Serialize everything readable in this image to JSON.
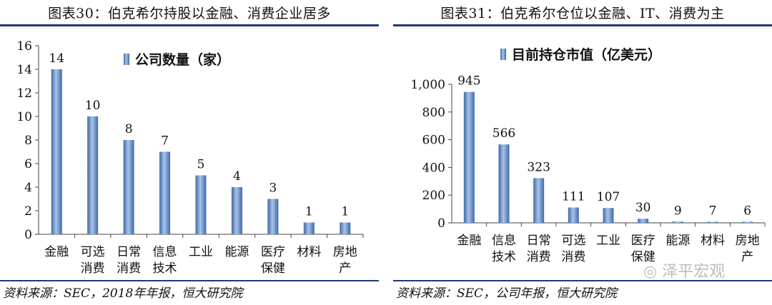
{
  "watermark": "泽平宏观",
  "watermark_icon": "wechat-icon",
  "bar_color": "#5b86c8",
  "bar_color_light": "#a9c3e8",
  "bar_color_dark": "#3e6aa8",
  "rule_color": "#1f3a73",
  "chart_data": [
    {
      "type": "bar",
      "figure_title": "图表30：伯克希尔持股以金融、消费企业居多",
      "legend": "公司数量（家）",
      "legend_position": "top",
      "source": "资料来源：SEC，2018年年报，恒大研究院",
      "categories": [
        [
          "金融"
        ],
        [
          "可选",
          "消费"
        ],
        [
          "日常",
          "消费"
        ],
        [
          "信息",
          "技术"
        ],
        [
          "工业"
        ],
        [
          "能源"
        ],
        [
          "医疗",
          "保健"
        ],
        [
          "材料"
        ],
        [
          "房地",
          "产"
        ]
      ],
      "values": [
        14,
        10,
        8,
        7,
        5,
        4,
        3,
        1,
        1
      ],
      "data_labels": [
        "14",
        "10",
        "8",
        "7",
        "5",
        "4",
        "3",
        "1",
        "1"
      ],
      "yticks": [
        "0",
        "2",
        "4",
        "6",
        "8",
        "10",
        "12",
        "14",
        "16"
      ],
      "ylim": [
        0,
        16
      ],
      "grid": false
    },
    {
      "type": "bar",
      "figure_title": "图表31：伯克希尔仓位以金融、IT、消费为主",
      "legend": "目前持仓市值（亿美元）",
      "legend_position": "top",
      "source": "资料来源：SEC，公司年报，恒大研究院",
      "categories": [
        [
          "金融"
        ],
        [
          "信息",
          "技术"
        ],
        [
          "日常",
          "消费"
        ],
        [
          "可选",
          "消费"
        ],
        [
          "工业"
        ],
        [
          "医疗",
          "保健"
        ],
        [
          "能源"
        ],
        [
          "材料"
        ],
        [
          "房地",
          "产"
        ]
      ],
      "values": [
        945,
        566,
        323,
        111,
        107,
        30,
        9,
        7,
        6
      ],
      "data_labels": [
        "945",
        "566",
        "323",
        "111",
        "107",
        "30",
        "9",
        "7",
        "6"
      ],
      "yticks": [
        "0",
        "200",
        "400",
        "600",
        "800",
        "1,000"
      ],
      "ylim": [
        0,
        1000
      ],
      "grid": false
    }
  ]
}
